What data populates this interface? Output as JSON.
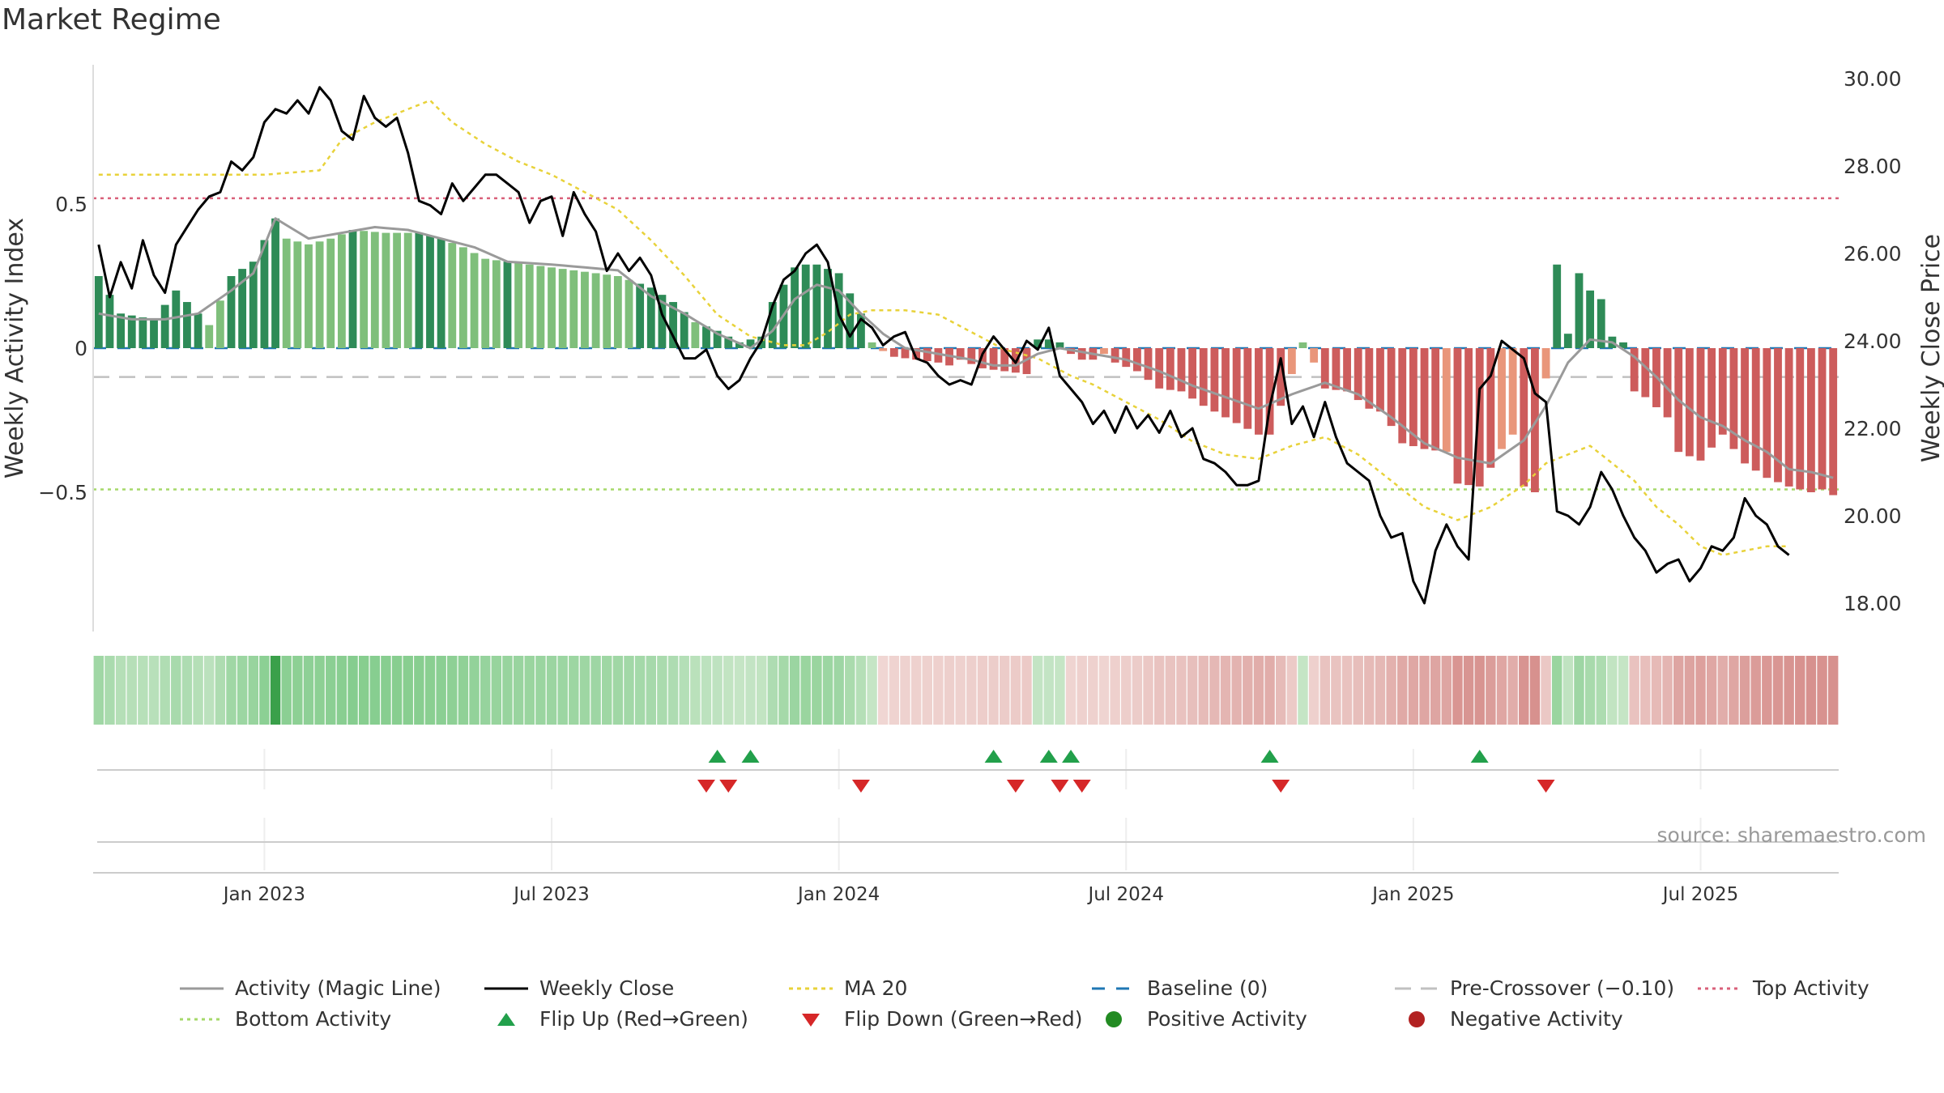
{
  "title": "Market Regime",
  "source": "source: sharemaestro.com",
  "colors": {
    "activity_line": "#9a9a9a",
    "close_line": "#000000",
    "ma20": "#e8d23a",
    "baseline": "#1f77b4",
    "pre_crossover": "#c0c0c0",
    "top_activity": "#d9607a",
    "bottom_activity": "#a6d96a",
    "flip_up": "#22a04b",
    "flip_down": "#d62728",
    "positive": "#228b22",
    "negative": "#b22222"
  },
  "chart_data": {
    "type": "bar",
    "ylabel_left": "Weekly Activity Index",
    "ylabel_right": "Weekly Close Price",
    "left_ticks": [
      "0.5",
      "0",
      "−0.5"
    ],
    "left_tick_values": [
      0.5,
      0,
      -0.5
    ],
    "right_ticks": [
      "30.00",
      "28.00",
      "26.00",
      "24.00",
      "22.00",
      "20.00",
      "18.00"
    ],
    "right_tick_values": [
      30,
      28,
      26,
      24,
      22,
      20,
      18
    ],
    "x_ticks": [
      "Jan 2023",
      "Jul 2023",
      "Jan 2024",
      "Jul 2024",
      "Jan 2025",
      "Jul 2025"
    ],
    "x_tick_week_index": [
      15,
      41,
      67,
      93,
      119,
      145
    ],
    "levels": {
      "top_activity": 0.52,
      "bottom_activity": -0.49,
      "pre_crossover": -0.1,
      "baseline": 0
    },
    "weeks": 158,
    "activity_control_points": [
      [
        0,
        0.25
      ],
      [
        2,
        0.12
      ],
      [
        5,
        0.1
      ],
      [
        7,
        0.2
      ],
      [
        9,
        0.12
      ],
      [
        10,
        0.08
      ],
      [
        12,
        0.25
      ],
      [
        14,
        0.3
      ],
      [
        16,
        0.45
      ],
      [
        17,
        0.38
      ],
      [
        19,
        0.36
      ],
      [
        21,
        0.38
      ],
      [
        23,
        0.41
      ],
      [
        26,
        0.4
      ],
      [
        29,
        0.4
      ],
      [
        31,
        0.38
      ],
      [
        33,
        0.35
      ],
      [
        35,
        0.31
      ],
      [
        37,
        0.3
      ],
      [
        39,
        0.29
      ],
      [
        41,
        0.28
      ],
      [
        43,
        0.27
      ],
      [
        45,
        0.26
      ],
      [
        47,
        0.25
      ],
      [
        50,
        0.21
      ],
      [
        52,
        0.16
      ],
      [
        54,
        0.09
      ],
      [
        56,
        0.06
      ],
      [
        58,
        0.02
      ],
      [
        60,
        0.04
      ],
      [
        61,
        0.16
      ],
      [
        63,
        0.28
      ],
      [
        64,
        0.29
      ],
      [
        65,
        0.29
      ],
      [
        67,
        0.26
      ],
      [
        69,
        0.12
      ],
      [
        70,
        0.02
      ],
      [
        71,
        -0.01
      ],
      [
        72,
        -0.03
      ],
      [
        74,
        -0.04
      ],
      [
        76,
        -0.05
      ],
      [
        77,
        -0.06
      ],
      [
        78,
        -0.04
      ],
      [
        80,
        -0.07
      ],
      [
        82,
        -0.08
      ],
      [
        84,
        -0.09
      ],
      [
        85,
        0.03
      ],
      [
        86,
        0.03
      ],
      [
        87,
        0.02
      ],
      [
        88,
        -0.02
      ],
      [
        89,
        -0.04
      ],
      [
        90,
        -0.04
      ],
      [
        91,
        -0.02
      ],
      [
        92,
        -0.05
      ],
      [
        94,
        -0.08
      ],
      [
        96,
        -0.14
      ],
      [
        98,
        -0.15
      ],
      [
        100,
        -0.2
      ],
      [
        102,
        -0.24
      ],
      [
        104,
        -0.28
      ],
      [
        105,
        -0.3
      ],
      [
        106,
        -0.3
      ],
      [
        107,
        -0.2
      ],
      [
        109,
        0.02
      ],
      [
        110,
        -0.05
      ],
      [
        111,
        -0.14
      ],
      [
        113,
        -0.15
      ],
      [
        115,
        -0.21
      ],
      [
        116,
        -0.22
      ],
      [
        117,
        -0.27
      ],
      [
        118,
        -0.33
      ],
      [
        120,
        -0.35
      ],
      [
        122,
        -0.36
      ],
      [
        123,
        -0.47
      ],
      [
        125,
        -0.48
      ],
      [
        127,
        -0.35
      ],
      [
        128,
        -0.3
      ],
      [
        129,
        -0.48
      ],
      [
        130,
        -0.5
      ],
      [
        132,
        0.29
      ],
      [
        133,
        0.05
      ],
      [
        134,
        0.26
      ],
      [
        135,
        0.2
      ],
      [
        136,
        0.17
      ],
      [
        137,
        0.04
      ],
      [
        138,
        0.02
      ],
      [
        139,
        -0.15
      ],
      [
        140,
        -0.17
      ],
      [
        142,
        -0.24
      ],
      [
        143,
        -0.36
      ],
      [
        145,
        -0.39
      ],
      [
        147,
        -0.3
      ],
      [
        149,
        -0.4
      ],
      [
        151,
        -0.45
      ],
      [
        153,
        -0.48
      ],
      [
        155,
        -0.5
      ],
      [
        156,
        -0.49
      ],
      [
        157,
        -0.51
      ]
    ],
    "magic_line_control_points": [
      [
        0,
        0.12
      ],
      [
        3,
        0.1
      ],
      [
        6,
        0.1
      ],
      [
        9,
        0.12
      ],
      [
        12,
        0.2
      ],
      [
        14,
        0.26
      ],
      [
        16,
        0.45
      ],
      [
        19,
        0.38
      ],
      [
        22,
        0.4
      ],
      [
        25,
        0.42
      ],
      [
        28,
        0.41
      ],
      [
        31,
        0.38
      ],
      [
        34,
        0.35
      ],
      [
        37,
        0.3
      ],
      [
        41,
        0.29
      ],
      [
        44,
        0.28
      ],
      [
        47,
        0.27
      ],
      [
        50,
        0.18
      ],
      [
        53,
        0.12
      ],
      [
        56,
        0.05
      ],
      [
        59,
        0.0
      ],
      [
        61,
        0.06
      ],
      [
        63,
        0.17
      ],
      [
        65,
        0.22
      ],
      [
        67,
        0.2
      ],
      [
        69,
        0.12
      ],
      [
        71,
        0.05
      ],
      [
        73,
        0.0
      ],
      [
        76,
        -0.02
      ],
      [
        79,
        -0.04
      ],
      [
        81,
        -0.06
      ],
      [
        83,
        -0.06
      ],
      [
        85,
        -0.02
      ],
      [
        87,
        0.0
      ],
      [
        90,
        -0.02
      ],
      [
        93,
        -0.04
      ],
      [
        96,
        -0.08
      ],
      [
        99,
        -0.13
      ],
      [
        102,
        -0.17
      ],
      [
        105,
        -0.21
      ],
      [
        108,
        -0.16
      ],
      [
        111,
        -0.12
      ],
      [
        114,
        -0.16
      ],
      [
        117,
        -0.24
      ],
      [
        120,
        -0.33
      ],
      [
        123,
        -0.38
      ],
      [
        126,
        -0.4
      ],
      [
        129,
        -0.32
      ],
      [
        131,
        -0.2
      ],
      [
        133,
        -0.05
      ],
      [
        135,
        0.03
      ],
      [
        137,
        0.02
      ],
      [
        139,
        -0.03
      ],
      [
        141,
        -0.1
      ],
      [
        143,
        -0.18
      ],
      [
        145,
        -0.24
      ],
      [
        147,
        -0.27
      ],
      [
        149,
        -0.32
      ],
      [
        151,
        -0.36
      ],
      [
        153,
        -0.42
      ],
      [
        155,
        -0.43
      ],
      [
        157,
        -0.45
      ]
    ],
    "close_control_points": [
      [
        0,
        26.2
      ],
      [
        1,
        25.0
      ],
      [
        2,
        25.8
      ],
      [
        3,
        25.2
      ],
      [
        4,
        26.3
      ],
      [
        5,
        25.5
      ],
      [
        6,
        25.1
      ],
      [
        7,
        26.2
      ],
      [
        8,
        26.6
      ],
      [
        9,
        27.0
      ],
      [
        10,
        27.3
      ],
      [
        11,
        27.4
      ],
      [
        12,
        28.1
      ],
      [
        13,
        27.9
      ],
      [
        14,
        28.2
      ],
      [
        15,
        29.0
      ],
      [
        16,
        29.3
      ],
      [
        17,
        29.2
      ],
      [
        18,
        29.5
      ],
      [
        19,
        29.2
      ],
      [
        20,
        29.8
      ],
      [
        21,
        29.5
      ],
      [
        22,
        28.8
      ],
      [
        23,
        28.6
      ],
      [
        24,
        29.6
      ],
      [
        25,
        29.1
      ],
      [
        26,
        28.9
      ],
      [
        27,
        29.1
      ],
      [
        28,
        28.3
      ],
      [
        29,
        27.2
      ],
      [
        30,
        27.1
      ],
      [
        31,
        26.9
      ],
      [
        32,
        27.6
      ],
      [
        33,
        27.2
      ],
      [
        34,
        27.5
      ],
      [
        35,
        27.8
      ],
      [
        36,
        27.8
      ],
      [
        37,
        27.6
      ],
      [
        38,
        27.4
      ],
      [
        39,
        26.7
      ],
      [
        40,
        27.2
      ],
      [
        41,
        27.3
      ],
      [
        42,
        26.4
      ],
      [
        43,
        27.4
      ],
      [
        44,
        26.9
      ],
      [
        45,
        26.5
      ],
      [
        46,
        25.6
      ],
      [
        47,
        26.0
      ],
      [
        48,
        25.6
      ],
      [
        49,
        25.9
      ],
      [
        50,
        25.5
      ],
      [
        51,
        24.6
      ],
      [
        52,
        24.1
      ],
      [
        53,
        23.6
      ],
      [
        54,
        23.6
      ],
      [
        55,
        23.8
      ],
      [
        56,
        23.2
      ],
      [
        57,
        22.9
      ],
      [
        58,
        23.1
      ],
      [
        59,
        23.6
      ],
      [
        60,
        24.0
      ],
      [
        61,
        24.8
      ],
      [
        62,
        25.4
      ],
      [
        63,
        25.6
      ],
      [
        64,
        26.0
      ],
      [
        65,
        26.2
      ],
      [
        66,
        25.8
      ],
      [
        67,
        24.6
      ],
      [
        68,
        24.1
      ],
      [
        69,
        24.5
      ],
      [
        70,
        24.3
      ],
      [
        71,
        23.9
      ],
      [
        72,
        24.1
      ],
      [
        73,
        24.2
      ],
      [
        74,
        23.6
      ],
      [
        75,
        23.5
      ],
      [
        76,
        23.2
      ],
      [
        77,
        23.0
      ],
      [
        78,
        23.1
      ],
      [
        79,
        23.0
      ],
      [
        80,
        23.7
      ],
      [
        81,
        24.1
      ],
      [
        82,
        23.8
      ],
      [
        83,
        23.5
      ],
      [
        84,
        24.0
      ],
      [
        85,
        23.8
      ],
      [
        86,
        24.3
      ],
      [
        87,
        23.2
      ],
      [
        88,
        22.9
      ],
      [
        89,
        22.6
      ],
      [
        90,
        22.1
      ],
      [
        91,
        22.4
      ],
      [
        92,
        21.9
      ],
      [
        93,
        22.5
      ],
      [
        94,
        22.0
      ],
      [
        95,
        22.3
      ],
      [
        96,
        21.9
      ],
      [
        97,
        22.4
      ],
      [
        98,
        21.8
      ],
      [
        99,
        22.0
      ],
      [
        100,
        21.3
      ],
      [
        101,
        21.2
      ],
      [
        102,
        21.0
      ],
      [
        103,
        20.7
      ],
      [
        104,
        20.7
      ],
      [
        105,
        20.8
      ],
      [
        106,
        22.5
      ],
      [
        107,
        23.6
      ],
      [
        108,
        22.1
      ],
      [
        109,
        22.5
      ],
      [
        110,
        21.8
      ],
      [
        111,
        22.6
      ],
      [
        112,
        21.8
      ],
      [
        113,
        21.2
      ],
      [
        114,
        21.0
      ],
      [
        115,
        20.8
      ],
      [
        116,
        20.0
      ],
      [
        117,
        19.5
      ],
      [
        118,
        19.6
      ],
      [
        119,
        18.5
      ],
      [
        120,
        18.0
      ],
      [
        121,
        19.2
      ],
      [
        122,
        19.8
      ],
      [
        123,
        19.3
      ],
      [
        124,
        19.0
      ],
      [
        125,
        22.9
      ],
      [
        126,
        23.2
      ],
      [
        127,
        24.0
      ],
      [
        128,
        23.8
      ],
      [
        129,
        23.6
      ],
      [
        130,
        22.8
      ],
      [
        131,
        22.6
      ],
      [
        132,
        20.1
      ],
      [
        133,
        20.0
      ],
      [
        134,
        19.8
      ],
      [
        135,
        20.2
      ],
      [
        136,
        21.0
      ],
      [
        137,
        20.6
      ],
      [
        138,
        20.0
      ],
      [
        139,
        19.5
      ],
      [
        140,
        19.2
      ],
      [
        141,
        18.7
      ],
      [
        142,
        18.9
      ],
      [
        143,
        19.0
      ],
      [
        144,
        18.5
      ],
      [
        145,
        18.8
      ],
      [
        146,
        19.3
      ],
      [
        147,
        19.2
      ],
      [
        148,
        19.5
      ],
      [
        149,
        20.4
      ],
      [
        150,
        20.0
      ],
      [
        151,
        19.8
      ],
      [
        152,
        19.3
      ],
      [
        153,
        19.1
      ]
    ],
    "ma20_control_points": [
      [
        0,
        27.8
      ],
      [
        5,
        27.8
      ],
      [
        10,
        27.8
      ],
      [
        15,
        27.8
      ],
      [
        20,
        27.9
      ],
      [
        22,
        28.6
      ],
      [
        25,
        29.0
      ],
      [
        28,
        29.3
      ],
      [
        30,
        29.5
      ],
      [
        32,
        29.0
      ],
      [
        35,
        28.5
      ],
      [
        38,
        28.1
      ],
      [
        41,
        27.8
      ],
      [
        44,
        27.4
      ],
      [
        47,
        27.0
      ],
      [
        50,
        26.3
      ],
      [
        53,
        25.5
      ],
      [
        56,
        24.6
      ],
      [
        59,
        24.1
      ],
      [
        62,
        23.9
      ],
      [
        64,
        23.9
      ],
      [
        66,
        24.2
      ],
      [
        68,
        24.6
      ],
      [
        70,
        24.7
      ],
      [
        73,
        24.7
      ],
      [
        76,
        24.6
      ],
      [
        79,
        24.2
      ],
      [
        82,
        23.8
      ],
      [
        85,
        23.6
      ],
      [
        88,
        23.2
      ],
      [
        90,
        23.0
      ],
      [
        93,
        22.6
      ],
      [
        96,
        22.2
      ],
      [
        99,
        21.7
      ],
      [
        102,
        21.4
      ],
      [
        105,
        21.3
      ],
      [
        108,
        21.6
      ],
      [
        111,
        21.8
      ],
      [
        114,
        21.4
      ],
      [
        117,
        20.8
      ],
      [
        120,
        20.2
      ],
      [
        123,
        19.9
      ],
      [
        126,
        20.2
      ],
      [
        129,
        20.7
      ],
      [
        131,
        21.2
      ],
      [
        133,
        21.4
      ],
      [
        135,
        21.6
      ],
      [
        137,
        21.2
      ],
      [
        139,
        20.8
      ],
      [
        141,
        20.2
      ],
      [
        143,
        19.8
      ],
      [
        145,
        19.3
      ],
      [
        147,
        19.1
      ],
      [
        149,
        19.2
      ],
      [
        151,
        19.3
      ],
      [
        153,
        19.3
      ]
    ],
    "flip_up_weeks": [
      56,
      59,
      81,
      86,
      88,
      106,
      125
    ],
    "flip_down_weeks": [
      55,
      57,
      69,
      83,
      87,
      89,
      107,
      131
    ],
    "legend": [
      "Activity (Magic Line)",
      "Weekly Close",
      "MA 20",
      "Baseline (0)",
      "Pre-Crossover (−0.10)",
      "Top Activity",
      "Bottom Activity",
      "Flip Up (Red→Green)",
      "Flip Down (Green→Red)",
      "Positive Activity",
      "Negative Activity"
    ]
  }
}
